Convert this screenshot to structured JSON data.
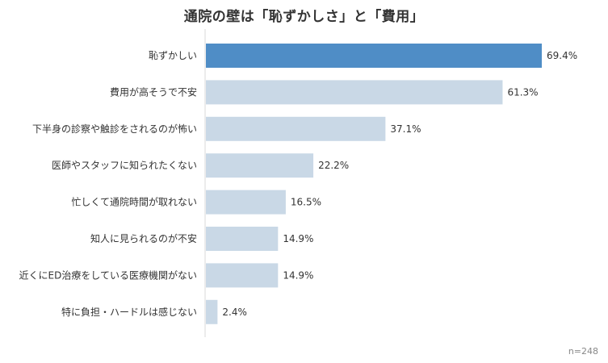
{
  "chart_data": {
    "type": "bar",
    "orientation": "horizontal",
    "title": "通院の壁は「恥ずかしさ」と「費用」",
    "categories": [
      "恥ずかしい",
      "費用が高そうで不安",
      "下半身の診察や触診をされるのが怖い",
      "医師やスタッフに知られたくない",
      "忙しくて通院時間が取れない",
      "知人に見られるのが不安",
      "近くにED治療をしている医療機関がない",
      "特に負担・ハードルは感じない"
    ],
    "values": [
      69.4,
      61.3,
      37.1,
      22.2,
      16.5,
      14.9,
      14.9,
      2.4
    ],
    "value_labels": [
      "69.4%",
      "61.3%",
      "37.1%",
      "22.2%",
      "16.5%",
      "14.9%",
      "14.9%",
      "2.4%"
    ],
    "xlim": [
      0,
      80
    ],
    "highlight_color": "#4f8dc6",
    "bar_color": "#c9d8e6",
    "grid": false,
    "note": "n=248"
  }
}
